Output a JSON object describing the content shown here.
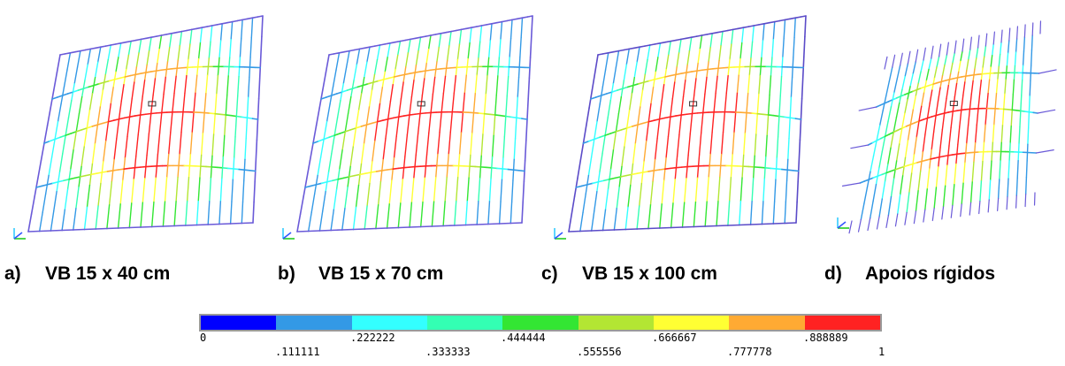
{
  "panels": [
    {
      "id": "a",
      "label": "a)",
      "title": "VB 15 x 40 cm",
      "edge": "#6a5ad8",
      "edgeOpacity": 1.0
    },
    {
      "id": "b",
      "label": "b)",
      "title": "VB 15 x 70 cm",
      "edge": "#6a5ad8",
      "edgeOpacity": 1.0
    },
    {
      "id": "c",
      "label": "c)",
      "title": "VB 15 x 100 cm",
      "edge": "#5b4bc8",
      "edgeOpacity": 1.0
    },
    {
      "id": "d",
      "label": "d)",
      "title": "Apoios rígidos",
      "edge": "#6a5ad8",
      "edgeOpacity": 0.0
    }
  ],
  "legend": {
    "colors": [
      "#0000ff",
      "#3399e6",
      "#33ffff",
      "#33ffb3",
      "#33e633",
      "#b3e633",
      "#ffff33",
      "#ffaa33",
      "#ff2222"
    ],
    "ticks_top": [
      "0",
      ".222222",
      ".444444",
      ".666667",
      ".888889"
    ],
    "ticks_bottom": [
      ".111111",
      ".333333",
      ".555556",
      ".777778",
      "1"
    ]
  },
  "icons": [
    "axis-triad-icon",
    "node-marker-icon"
  ]
}
